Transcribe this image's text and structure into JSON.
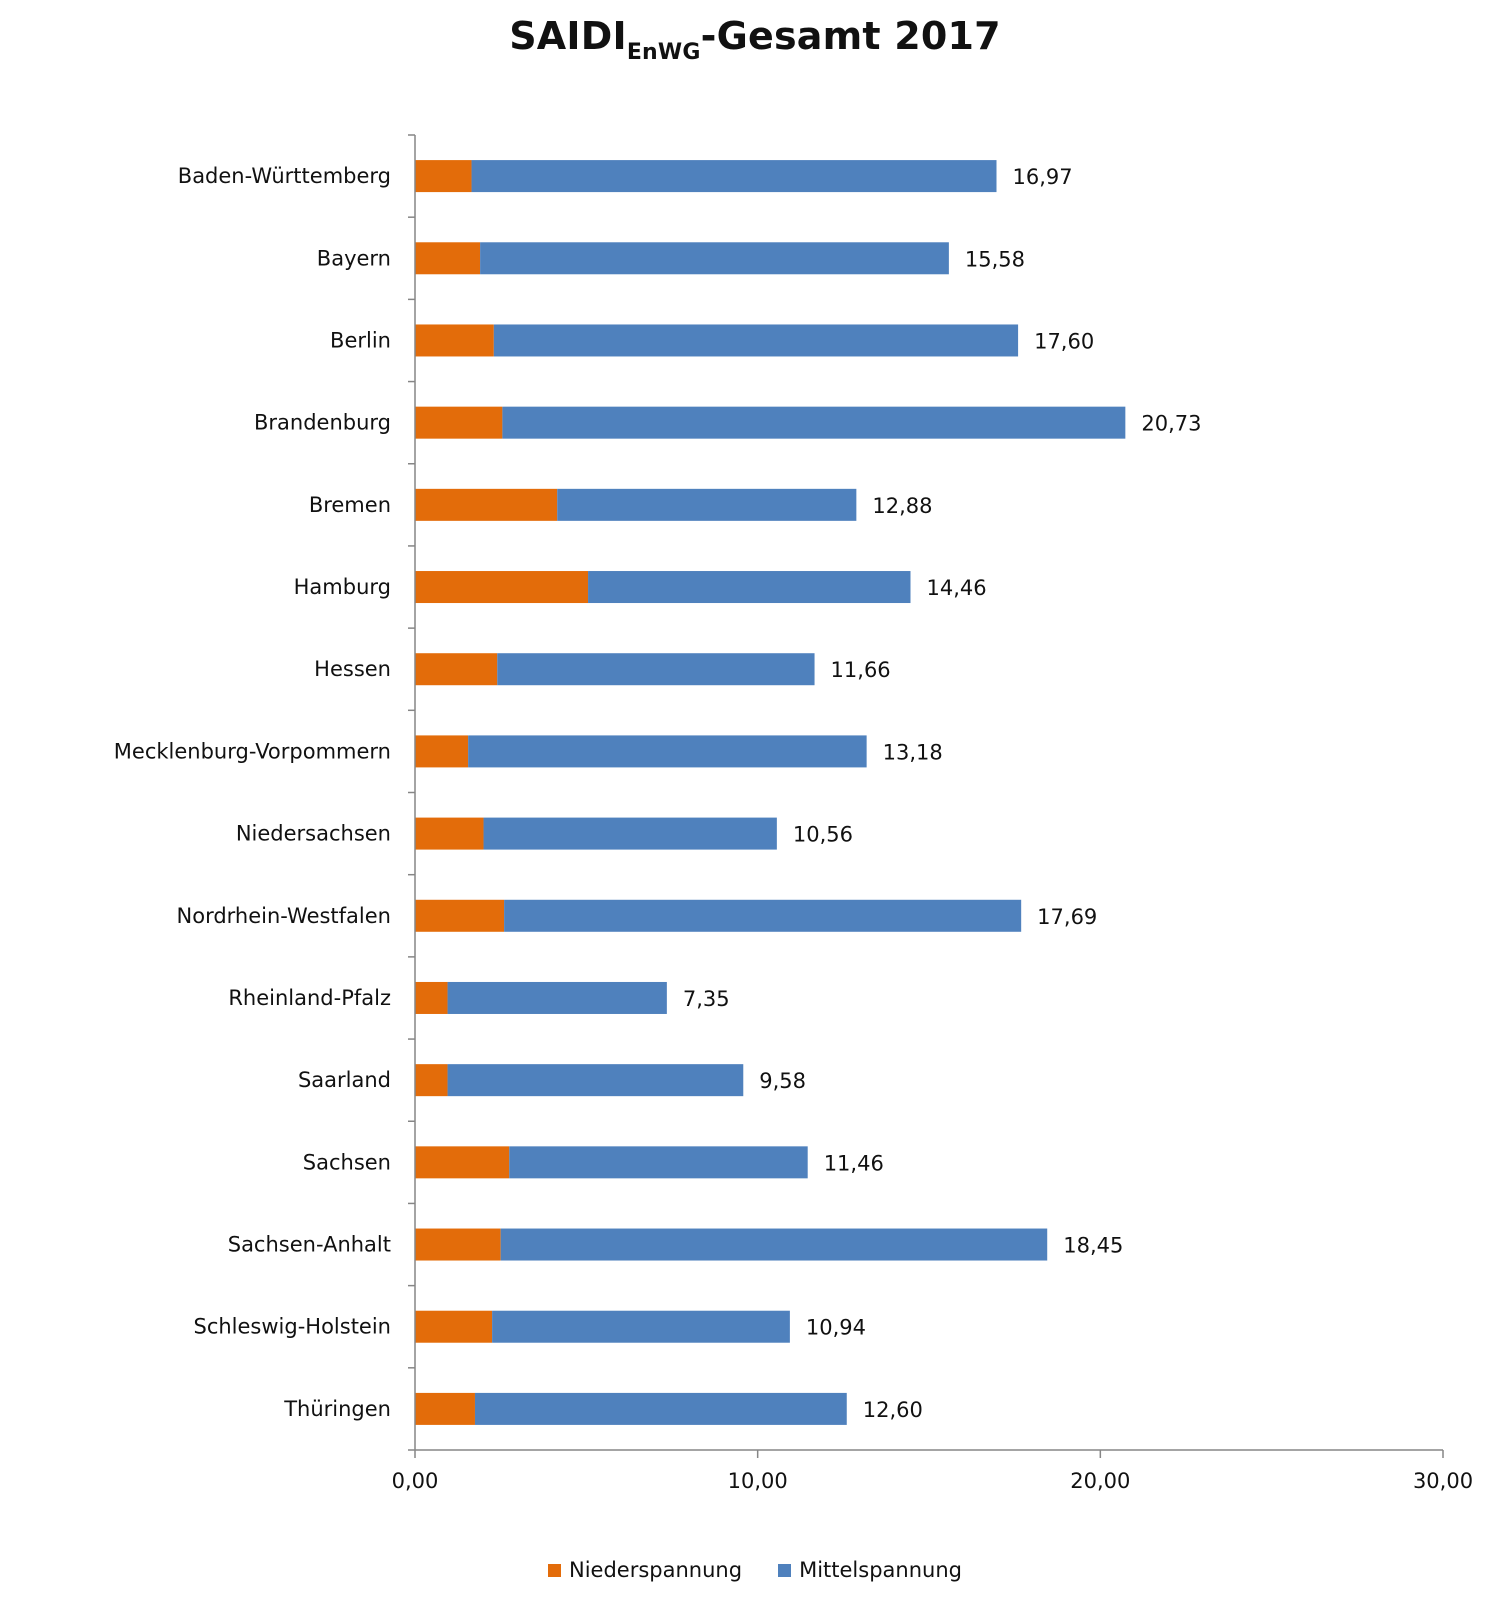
{
  "chart_data": {
    "type": "bar",
    "orientation": "horizontal",
    "stacked": true,
    "title": {
      "main": "SAIDI",
      "subscript": "EnWG",
      "suffix": "-Gesamt 2017"
    },
    "categories": [
      "Baden-Württemberg",
      "Bayern",
      "Berlin",
      "Brandenburg",
      "Bremen",
      "Hamburg",
      "Hessen",
      "Mecklenburg-Vorpommern",
      "Niedersachsen",
      "Nordrhein-Westfalen",
      "Rheinland-Pfalz",
      "Saarland",
      "Sachsen",
      "Sachsen-Anhalt",
      "Schleswig-Holstein",
      "Thüringen"
    ],
    "series": [
      {
        "name": "Niederspannung",
        "color": "#E36C0A",
        "values": [
          1.65,
          1.9,
          2.3,
          2.55,
          4.15,
          5.05,
          2.4,
          1.55,
          2.0,
          2.6,
          0.95,
          0.95,
          2.75,
          2.5,
          2.25,
          1.75
        ]
      },
      {
        "name": "Mittelspannung",
        "color": "#4F81BD",
        "values": [
          15.32,
          13.68,
          15.3,
          18.18,
          8.73,
          9.41,
          9.26,
          11.63,
          8.56,
          15.09,
          6.4,
          8.63,
          8.71,
          15.95,
          8.69,
          10.85
        ]
      }
    ],
    "totals": [
      "16,97",
      "15,58",
      "17,60",
      "20,73",
      "12,88",
      "14,46",
      "11,66",
      "13,18",
      "10,56",
      "17,69",
      "7,35",
      "9,58",
      "11,46",
      "18,45",
      "10,94",
      "12,60"
    ],
    "total_values": [
      16.97,
      15.58,
      17.6,
      20.73,
      12.88,
      14.46,
      11.66,
      13.18,
      10.56,
      17.69,
      7.35,
      9.58,
      11.46,
      18.45,
      10.94,
      12.6
    ],
    "xlim": [
      0,
      30
    ],
    "xticks": [
      0,
      10,
      20,
      30
    ],
    "xtick_labels": [
      "0,00",
      "10,00",
      "20,00",
      "30,00"
    ],
    "grid": false,
    "legend_position": "bottom"
  }
}
